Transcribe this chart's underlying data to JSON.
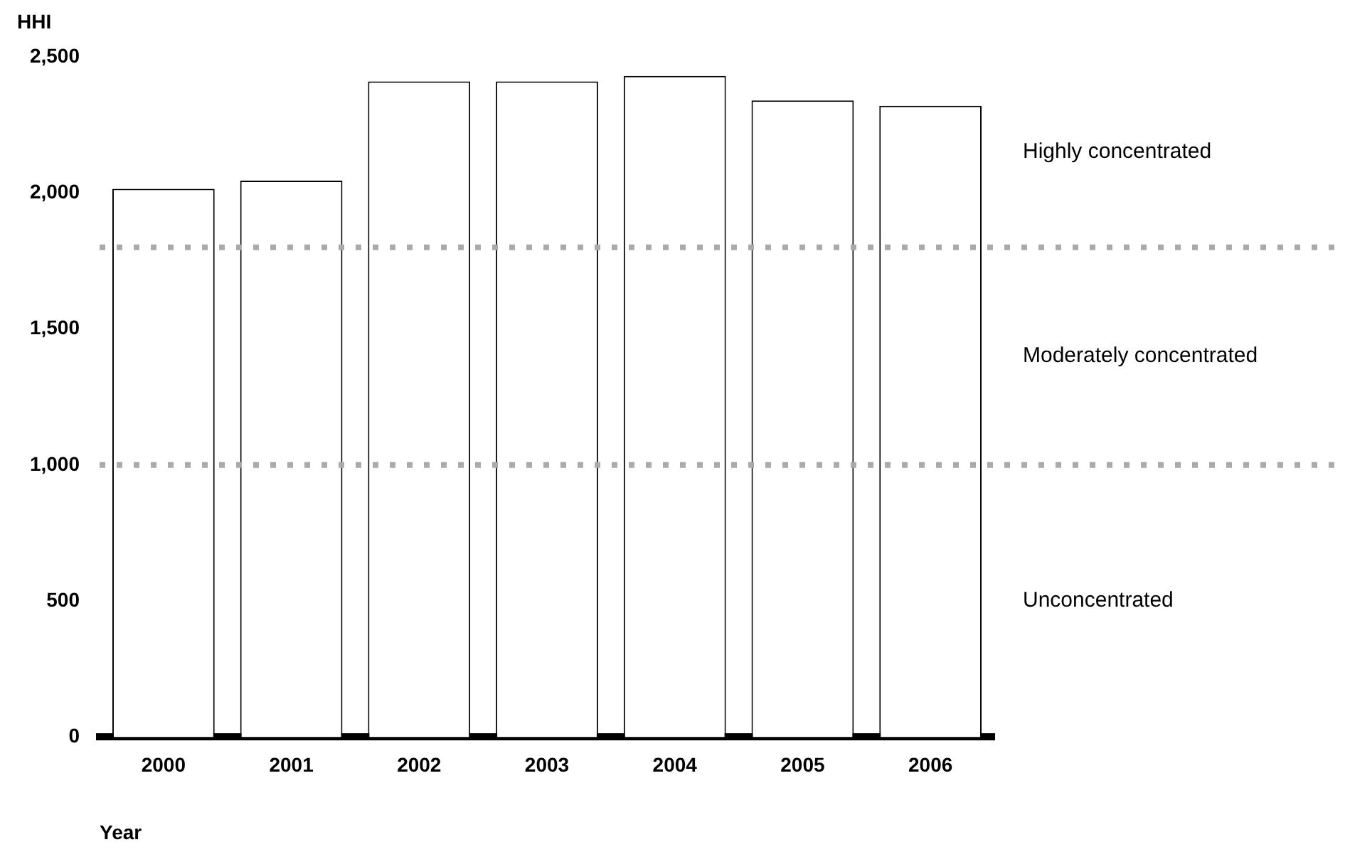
{
  "chart_data": {
    "type": "bar",
    "ylabel": "HHI",
    "xlabel": "Year",
    "categories": [
      "2000",
      "2001",
      "2002",
      "2003",
      "2004",
      "2005",
      "2006"
    ],
    "values": [
      2015,
      2045,
      2410,
      2410,
      2430,
      2340,
      2320
    ],
    "color": "#ffffff",
    "ylim": [
      0,
      2500
    ],
    "yticks": [
      0,
      {
        "value": 500,
        "label": "500"
      },
      {
        "value": 1000,
        "label": "1,000"
      },
      {
        "value": 1500,
        "label": "1,500"
      },
      {
        "value": 2000,
        "label": "2,000"
      },
      {
        "value": 2500,
        "label": "2,500"
      }
    ],
    "grid": false,
    "legend": false,
    "ref_lines": [
      {
        "axis": "y",
        "value": 1800,
        "color": "#aaaaaa",
        "line_style": "dotted"
      },
      {
        "axis": "y",
        "value": 1000,
        "color": "#aaaaaa",
        "line_style": "dotted"
      }
    ],
    "annotations": [
      "Highly concentrated",
      "Moderately concentrated",
      "Unconcentrated"
    ]
  }
}
